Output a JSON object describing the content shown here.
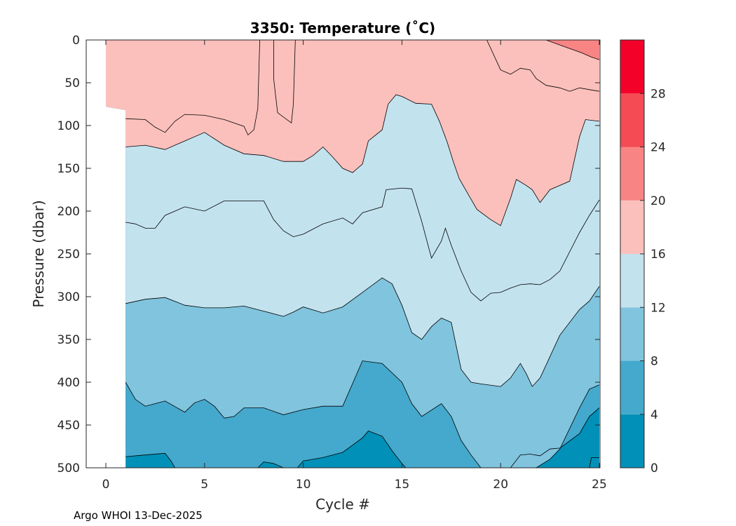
{
  "chart_data": {
    "type": "heatmap",
    "title": "3350:  Temperature (˚C)",
    "xlabel": "Cycle #",
    "ylabel": "Pressure (dbar)",
    "xlim": [
      -0.5,
      25
    ],
    "ylim": [
      0,
      500
    ],
    "y_reversed": true,
    "x_ticks": [
      "0",
      "5",
      "10",
      "15",
      "20",
      "25"
    ],
    "x_tick_values": [
      0,
      5,
      10,
      15,
      20,
      25
    ],
    "y_ticks": [
      "0",
      "50",
      "100",
      "150",
      "200",
      "250",
      "300",
      "350",
      "400",
      "450",
      "500"
    ],
    "y_tick_values": [
      0,
      50,
      100,
      150,
      200,
      250,
      300,
      350,
      400,
      450,
      500
    ],
    "colorbar": {
      "ticks": [
        "0",
        "4",
        "8",
        "12",
        "16",
        "20",
        "24",
        "28"
      ],
      "tick_values": [
        0,
        4,
        8,
        12,
        16,
        20,
        24,
        28
      ],
      "levels": [
        0,
        4,
        8,
        12,
        16,
        20,
        24,
        28,
        32
      ],
      "colors": [
        "#0090b8",
        "#44a9cc",
        "#80c4de",
        "#c2e2ee",
        "#fbc0bc",
        "#f88584",
        "#f44b55",
        "#f4012a"
      ]
    },
    "isotherms": [
      {
        "level": 20,
        "points": [
          [
            22.3,
            0
          ],
          [
            22.9,
            5
          ],
          [
            23.5,
            10
          ],
          [
            24.1,
            15
          ],
          [
            24.6,
            20
          ],
          [
            25,
            23
          ]
        ]
      },
      {
        "level": 16,
        "points": [
          [
            1,
            92
          ],
          [
            2,
            93
          ],
          [
            2.5,
            102
          ],
          [
            3,
            108
          ],
          [
            3.5,
            95
          ],
          [
            4,
            87
          ],
          [
            5,
            88
          ],
          [
            6,
            93
          ],
          [
            7,
            101
          ],
          [
            7.2,
            111
          ],
          [
            7.5,
            105
          ],
          [
            7.7,
            80
          ],
          [
            7.8,
            0
          ]
        ]
      },
      {
        "level": 16,
        "points": [
          [
            8.5,
            0
          ],
          [
            8.5,
            45
          ],
          [
            8.7,
            85
          ],
          [
            9.4,
            97
          ],
          [
            9.5,
            75
          ],
          [
            9.6,
            0
          ]
        ]
      },
      {
        "level": 16,
        "points": [
          [
            1,
            125
          ],
          [
            2,
            123
          ],
          [
            3,
            128
          ],
          [
            4,
            118
          ],
          [
            5,
            108
          ],
          [
            6,
            123
          ],
          [
            7,
            133
          ],
          [
            8,
            135
          ],
          [
            9,
            142
          ],
          [
            10,
            142
          ],
          [
            10.5,
            135
          ],
          [
            11,
            125
          ],
          [
            11.5,
            137
          ],
          [
            12,
            150
          ],
          [
            12.5,
            155
          ],
          [
            13,
            145
          ],
          [
            13.3,
            118
          ],
          [
            14,
            105
          ],
          [
            14.3,
            75
          ],
          [
            14.7,
            64
          ],
          [
            15,
            66
          ],
          [
            15.7,
            74
          ],
          [
            16.5,
            75
          ],
          [
            16.9,
            95
          ],
          [
            17.3,
            120
          ],
          [
            17.6,
            142
          ],
          [
            17.9,
            162
          ],
          [
            18.3,
            178
          ],
          [
            18.8,
            198
          ],
          [
            19.5,
            210
          ],
          [
            20,
            217
          ],
          [
            20.5,
            185
          ],
          [
            20.8,
            163
          ],
          [
            21.3,
            170
          ],
          [
            21.6,
            175
          ],
          [
            22,
            190
          ],
          [
            22.5,
            175
          ],
          [
            23,
            170
          ],
          [
            23.5,
            165
          ],
          [
            24,
            113
          ],
          [
            24.3,
            93
          ],
          [
            25,
            95
          ]
        ]
      },
      {
        "level": 16,
        "points": [
          [
            19.3,
            0
          ],
          [
            19.7,
            20
          ],
          [
            20,
            35
          ],
          [
            20.5,
            40
          ],
          [
            21,
            33
          ],
          [
            21.5,
            35
          ],
          [
            21.8,
            45
          ],
          [
            22.3,
            53
          ],
          [
            23,
            56
          ],
          [
            23.5,
            60
          ],
          [
            24,
            56
          ],
          [
            24.5,
            58
          ],
          [
            25,
            60
          ]
        ]
      },
      {
        "level": 12,
        "points": [
          [
            1,
            213
          ],
          [
            1.5,
            215
          ],
          [
            2,
            220
          ],
          [
            2.5,
            220
          ],
          [
            3,
            205
          ],
          [
            4,
            195
          ],
          [
            5,
            200
          ],
          [
            6,
            188
          ],
          [
            7,
            188
          ],
          [
            8,
            188
          ],
          [
            8.5,
            210
          ],
          [
            9,
            223
          ],
          [
            9.5,
            230
          ],
          [
            10,
            227
          ],
          [
            11,
            215
          ],
          [
            12,
            208
          ],
          [
            12.5,
            215
          ],
          [
            13,
            202
          ],
          [
            14,
            195
          ],
          [
            14.2,
            175
          ],
          [
            15,
            173
          ],
          [
            15.5,
            174
          ],
          [
            16,
            212
          ],
          [
            16.5,
            255
          ],
          [
            17,
            235
          ],
          [
            17.2,
            220
          ],
          [
            17.5,
            240
          ],
          [
            18,
            270
          ],
          [
            18.5,
            295
          ],
          [
            19,
            305
          ],
          [
            19.5,
            296
          ],
          [
            20,
            295
          ],
          [
            20.5,
            290
          ],
          [
            21,
            286
          ],
          [
            21.5,
            285
          ],
          [
            22,
            286
          ],
          [
            22.5,
            280
          ],
          [
            23,
            270
          ],
          [
            24,
            225
          ],
          [
            24.5,
            205
          ],
          [
            25,
            187
          ]
        ]
      },
      {
        "level": 8,
        "points": [
          [
            1,
            308
          ],
          [
            2,
            303
          ],
          [
            3,
            301
          ],
          [
            4,
            310
          ],
          [
            5,
            313
          ],
          [
            6,
            313
          ],
          [
            7,
            311
          ],
          [
            8,
            317
          ],
          [
            9,
            323
          ],
          [
            9.5,
            318
          ],
          [
            10,
            312
          ],
          [
            11,
            319
          ],
          [
            12,
            312
          ],
          [
            13,
            295
          ],
          [
            14,
            278
          ],
          [
            14.5,
            285
          ],
          [
            15,
            310
          ],
          [
            15.5,
            342
          ],
          [
            16,
            350
          ],
          [
            16.5,
            335
          ],
          [
            17,
            325
          ],
          [
            17.5,
            330
          ],
          [
            18,
            385
          ],
          [
            18.5,
            400
          ],
          [
            19,
            402
          ],
          [
            20,
            405
          ],
          [
            20.5,
            395
          ],
          [
            21,
            378
          ],
          [
            21.3,
            390
          ],
          [
            21.6,
            405
          ],
          [
            22,
            395
          ],
          [
            22.5,
            370
          ],
          [
            23,
            345
          ],
          [
            24,
            315
          ],
          [
            24.5,
            305
          ],
          [
            25,
            288
          ]
        ]
      },
      {
        "level": 4,
        "points": [
          [
            1,
            400
          ],
          [
            1.5,
            420
          ],
          [
            2,
            428
          ],
          [
            2.5,
            425
          ],
          [
            3,
            422
          ],
          [
            4,
            435
          ],
          [
            4.5,
            424
          ],
          [
            5,
            420
          ],
          [
            5.5,
            428
          ],
          [
            6,
            442
          ],
          [
            6.5,
            440
          ],
          [
            7,
            430
          ],
          [
            8,
            430
          ],
          [
            9,
            438
          ],
          [
            10,
            432
          ],
          [
            11,
            428
          ],
          [
            12,
            428
          ],
          [
            13,
            375
          ],
          [
            14,
            378
          ],
          [
            15,
            400
          ],
          [
            15.5,
            425
          ],
          [
            16,
            440
          ],
          [
            17,
            425
          ],
          [
            17.5,
            440
          ],
          [
            18,
            468
          ],
          [
            18.5,
            485
          ],
          [
            19,
            500
          ]
        ]
      },
      {
        "level": 4,
        "points": [
          [
            21.8,
            500
          ],
          [
            22.5,
            490
          ],
          [
            23,
            478
          ],
          [
            24,
            430
          ],
          [
            24.5,
            408
          ],
          [
            25,
            403
          ]
        ]
      },
      {
        "level": 0,
        "points": [
          [
            1,
            487
          ],
          [
            2,
            485
          ],
          [
            3,
            483
          ],
          [
            3.3,
            492
          ],
          [
            3.5,
            500
          ]
        ]
      },
      {
        "level": 0,
        "points": [
          [
            7.7,
            500
          ],
          [
            8,
            493
          ],
          [
            8.5,
            495
          ],
          [
            9,
            500
          ]
        ]
      },
      {
        "level": 0,
        "points": [
          [
            9.7,
            500
          ],
          [
            10,
            492
          ],
          [
            11,
            488
          ],
          [
            12,
            482
          ],
          [
            13,
            465
          ],
          [
            13.3,
            457
          ],
          [
            14,
            463
          ],
          [
            14.5,
            480
          ],
          [
            15,
            495
          ],
          [
            15.2,
            500
          ]
        ]
      },
      {
        "level": 0,
        "points": [
          [
            20.5,
            500
          ],
          [
            21,
            485
          ],
          [
            21.5,
            484
          ],
          [
            22,
            486
          ],
          [
            22.5,
            478
          ],
          [
            23,
            477
          ],
          [
            24,
            460
          ],
          [
            24.5,
            440
          ],
          [
            25,
            430
          ]
        ]
      },
      {
        "level": 0,
        "points": [
          [
            24.5,
            500
          ],
          [
            24.6,
            488
          ],
          [
            25,
            488
          ]
        ]
      }
    ]
  },
  "footer": {
    "credit": "Argo WHOI 13-Dec-2025"
  }
}
